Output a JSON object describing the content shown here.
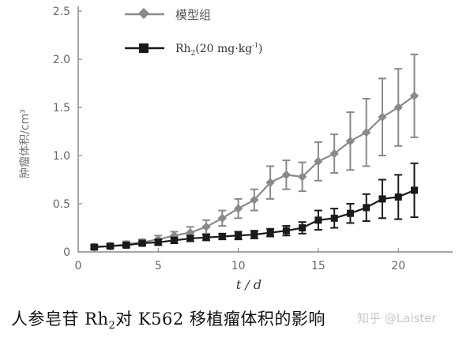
{
  "chart_data": {
    "type": "line",
    "xlabel": "t / d",
    "ylabel": "肿瘤体积/cm³",
    "xlim": [
      0,
      23
    ],
    "ylim": [
      0,
      2.5
    ],
    "xticks": [
      0,
      5,
      10,
      15,
      20
    ],
    "yticks": [
      0,
      0.5,
      1.0,
      1.5,
      2.0,
      2.5
    ],
    "ytick_labels": [
      "0",
      "0.5",
      "1.0",
      "1.5",
      "2.0",
      "2.5"
    ],
    "legend_placement": "top-left",
    "x": [
      1,
      2,
      3,
      4,
      5,
      6,
      7,
      8,
      9,
      10,
      11,
      12,
      13,
      14,
      15,
      16,
      17,
      18,
      19,
      20,
      21
    ],
    "series": [
      {
        "name": "模型组",
        "color": "#8a8a8a",
        "marker": "diamond",
        "values": [
          0.05,
          0.06,
          0.08,
          0.1,
          0.13,
          0.17,
          0.2,
          0.26,
          0.35,
          0.45,
          0.54,
          0.72,
          0.8,
          0.78,
          0.94,
          1.02,
          1.15,
          1.24,
          1.4,
          1.5,
          1.62
        ],
        "errors": [
          0.02,
          0.02,
          0.03,
          0.03,
          0.04,
          0.04,
          0.06,
          0.07,
          0.08,
          0.1,
          0.11,
          0.17,
          0.15,
          0.15,
          0.2,
          0.2,
          0.3,
          0.35,
          0.4,
          0.4,
          0.43
        ]
      },
      {
        "name": "Rh2(20 mg·kg⁻¹)",
        "color": "#1a1a1a",
        "marker": "square",
        "values": [
          0.05,
          0.06,
          0.07,
          0.09,
          0.1,
          0.12,
          0.14,
          0.15,
          0.16,
          0.17,
          0.18,
          0.2,
          0.22,
          0.25,
          0.33,
          0.35,
          0.4,
          0.46,
          0.55,
          0.57,
          0.64
        ],
        "errors": [
          0.02,
          0.02,
          0.02,
          0.02,
          0.03,
          0.03,
          0.03,
          0.03,
          0.03,
          0.04,
          0.04,
          0.04,
          0.05,
          0.06,
          0.1,
          0.1,
          0.1,
          0.14,
          0.2,
          0.23,
          0.28
        ]
      }
    ]
  },
  "caption": {
    "text_before": "人参皂苷 Rh",
    "subscript": "2",
    "text_after": "对 K562 移植瘤体积的影响"
  },
  "legend": {
    "model_label": "模型组",
    "rh2_label_main": "Rh",
    "rh2_label_sub": "2",
    "rh2_label_rest": "(20 mg·kg",
    "rh2_label_sup": "-1",
    "rh2_label_end": ")"
  },
  "watermark": "知乎 @Laister"
}
